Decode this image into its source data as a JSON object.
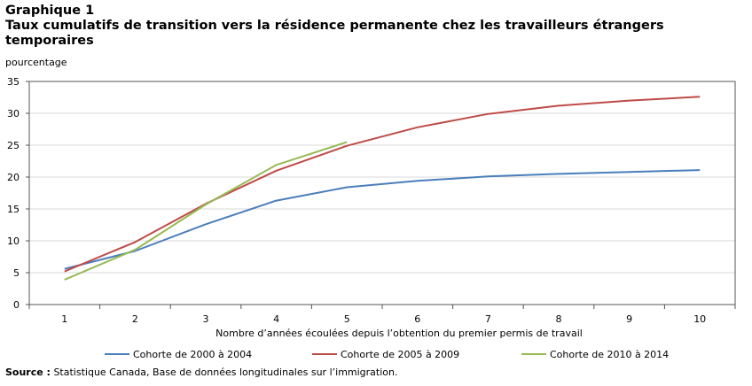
{
  "header": {
    "figure_label": "Graphique 1",
    "title": "Taux cumulatifs de transition vers la résidence permanente chez les travailleurs étrangers temporaires"
  },
  "source": {
    "label": "Source :",
    "text": "Statistique Canada, Base de données longitudinales sur l’immigration."
  },
  "chart_data": {
    "type": "line",
    "title": "Taux cumulatifs de transition vers la résidence permanente chez les travailleurs étrangers temporaires",
    "xlabel": "Nombre d’années écoulées depuis l’obtention du premier permis de travail",
    "ylabel": "pourcentage",
    "x": [
      1,
      2,
      3,
      4,
      5,
      6,
      7,
      8,
      9,
      10
    ],
    "xlim": [
      0.5,
      10.5
    ],
    "ylim": [
      0,
      35
    ],
    "yticks": [
      0,
      5,
      10,
      15,
      20,
      25,
      30,
      35
    ],
    "grid": true,
    "legend_position": "bottom",
    "series": [
      {
        "name": "Cohorte de 2000 à 2004",
        "color": "#4a7ebb",
        "values": [
          5.6,
          8.4,
          12.6,
          16.3,
          18.4,
          19.4,
          20.1,
          20.5,
          20.8,
          21.1
        ]
      },
      {
        "name": "Cohorte de 2005 à 2009",
        "color": "#be4b48",
        "values": [
          5.2,
          9.8,
          15.8,
          21.0,
          24.9,
          27.8,
          29.9,
          31.2,
          32.0,
          32.6
        ]
      },
      {
        "name": "Cohorte de 2010 à 2014",
        "color": "#98b954",
        "values": [
          3.9,
          8.6,
          15.7,
          21.9,
          25.5,
          null,
          null,
          null,
          null,
          null
        ]
      }
    ]
  }
}
